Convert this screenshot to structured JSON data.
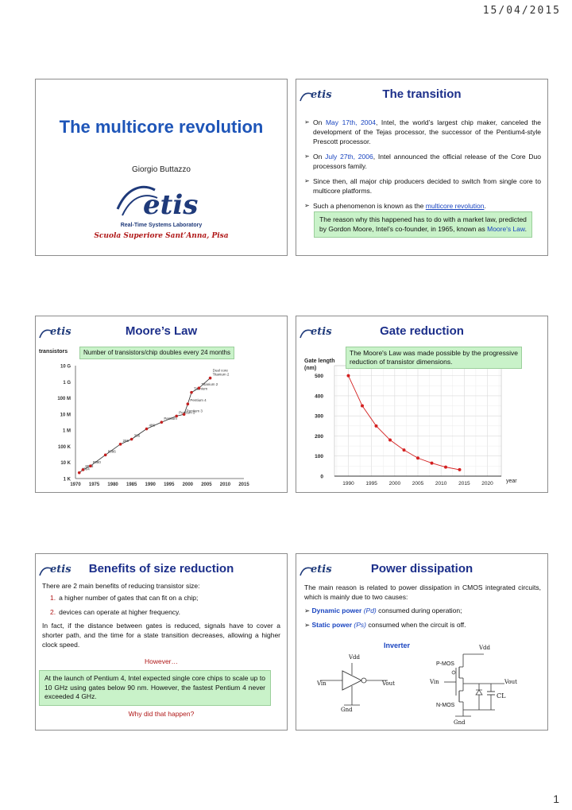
{
  "header": {
    "date": "15/04/2015"
  },
  "footer": {
    "page_number": "1"
  },
  "logo": {
    "text": "etis",
    "subtitle": "Real-Time Systems Laboratory"
  },
  "slide1": {
    "title": "The multicore revolution",
    "author": "Giorgio Buttazzo",
    "lab": "Real-Time Systems Laboratory",
    "school": "Scuola Superiore Sant’Anna, Pisa"
  },
  "slide2": {
    "title": "The transition",
    "b1_pre": "On ",
    "b1_date": "May 17th, 2004",
    "b1_post": ", Intel, the world’s largest chip maker, canceled the development of the Tejas processor, the successor of the Pentium4-style Prescott processor.",
    "b2_pre": "On ",
    "b2_date": "July 27th, 2006",
    "b2_post": ", Intel announced the official release of the Core Duo processors family.",
    "b3": "Since then, all major chip producers decided to switch from single core to multicore platforms.",
    "b4_pre": "Such a phenomenon is known as the ",
    "b4_link": "multicore revolution",
    "b4_post": ".",
    "box_pre": "The reason why this happened has to do with a market law, predicted by Gordon Moore, Intel’s co-founder, in 1965, known as ",
    "box_link": "Moore's Law",
    "box_post": "."
  },
  "slide3": {
    "title": "Moore’s Law",
    "ylabel": "transistors",
    "note": "Number of transistors/chip doubles every 24 months"
  },
  "slide4": {
    "title": "Gate reduction",
    "ylabel_1": "Gate length",
    "ylabel_2": "(nm)",
    "xlabel": "year",
    "note": "The Moore's Law was made possible by the progressive reduction of transistor dimensions."
  },
  "slide5": {
    "title": "Benefits of size reduction",
    "intro": "There are 2 main benefits of reducing transistor size:",
    "item1_num": "1.",
    "item1": "a higher number of gates that can fit on a chip;",
    "item2_num": "2.",
    "item2": "devices can operate at higher frequency.",
    "para": "In fact, if the distance between gates is reduced, signals have to cover a shorter path, and the time for a state transition decreases, allowing a higher clock speed.",
    "however": "However…",
    "box": "At the launch of Pentium 4, Intel expected single core chips to scale up to 10 GHz using gates below 90 nm. However, the fastest Pentium 4 never exceeded 4 GHz.",
    "question": "Why did that happen?"
  },
  "slide6": {
    "title": "Power dissipation",
    "intro": "The main reason is related to power dissipation in CMOS integrated circuits, which is mainly due to two causes:",
    "d_label": "Dynamic power",
    "d_sym": "(Pd)",
    "d_text": " consumed during operation;",
    "s_label": "Static power",
    "s_sym": "(Ps)",
    "s_text": " consumed when the circuit is off.",
    "inverter": "Inverter",
    "vdd": "Vdd",
    "vin": "Vin",
    "vout": "Vout",
    "gnd": "Gnd",
    "pmos": "P-MOS",
    "nmos": "N-MOS",
    "cl": "CL"
  },
  "chart_data": [
    {
      "type": "line",
      "title": "Moore’s Law",
      "ylabel": "transistors",
      "yscale": "log",
      "yticks": [
        "1 K",
        "10 K",
        "100 K",
        "1 M",
        "10 M",
        "100 M",
        "1 G",
        "10 G"
      ],
      "xticks": [
        1970,
        1975,
        1980,
        1985,
        1990,
        1995,
        2000,
        2005,
        2010,
        2015
      ],
      "xlim": [
        1970,
        2015
      ],
      "ylim_log10": [
        3,
        10
      ],
      "points": [
        {
          "label": "4004",
          "x": 1971,
          "y": 2300
        },
        {
          "label": "8008",
          "x": 1972,
          "y": 3500
        },
        {
          "label": "8080",
          "x": 1974,
          "y": 6000
        },
        {
          "label": "8086",
          "x": 1978,
          "y": 29000
        },
        {
          "label": "286",
          "x": 1982,
          "y": 134000
        },
        {
          "label": "386",
          "x": 1985,
          "y": 275000
        },
        {
          "label": "486",
          "x": 1989,
          "y": 1200000
        },
        {
          "label": "Pentium",
          "x": 1993,
          "y": 3100000
        },
        {
          "label": "Pentium 2",
          "x": 1997,
          "y": 7500000
        },
        {
          "label": "Pentium 3",
          "x": 1999,
          "y": 9500000
        },
        {
          "label": "Pentium 4",
          "x": 2000,
          "y": 42000000
        },
        {
          "label": "Titanium",
          "x": 2001,
          "y": 220000000
        },
        {
          "label": "Titanium 2",
          "x": 2003,
          "y": 410000000
        },
        {
          "label": "Dual core Titanium 2",
          "x": 2006,
          "y": 1700000000
        }
      ]
    },
    {
      "type": "line",
      "title": "Gate reduction",
      "ylabel": "Gate length (nm)",
      "xlabel": "year",
      "xticks": [
        1990,
        1995,
        2000,
        2005,
        2010,
        2015,
        2020
      ],
      "yticks": [
        0,
        100,
        200,
        300,
        400,
        500
      ],
      "xlim": [
        1987,
        2023
      ],
      "ylim": [
        0,
        550
      ],
      "x": [
        1990,
        1993,
        1996,
        1999,
        2002,
        2005,
        2008,
        2011,
        2014
      ],
      "y": [
        500,
        350,
        250,
        180,
        130,
        90,
        65,
        45,
        32
      ],
      "color": "#d42020"
    }
  ]
}
